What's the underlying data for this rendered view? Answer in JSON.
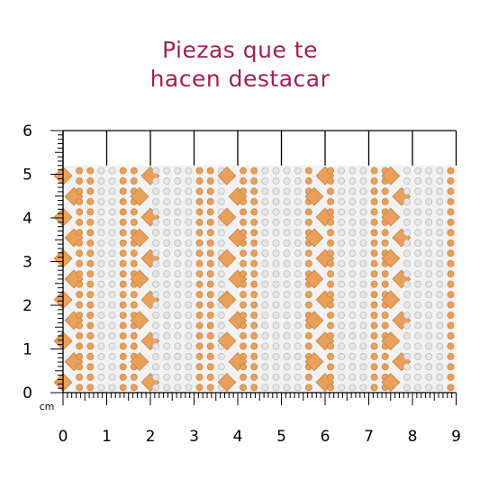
{
  "title": {
    "line1": "Piezas que te",
    "line2": "hacen destacar"
  },
  "ruler": {
    "unit": "cm",
    "x_labels": [
      "0",
      "1",
      "2",
      "3",
      "4",
      "5",
      "6",
      "7",
      "8",
      "9"
    ],
    "y_labels": [
      "0",
      "1",
      "2",
      "3",
      "4",
      "5",
      "6"
    ],
    "x_range_cm": [
      0,
      9
    ],
    "y_range_cm": [
      0,
      6
    ]
  },
  "product": {
    "width_cm": 9,
    "height_cm": 5.2,
    "colors": {
      "gold": "#e8a05a",
      "gold_dark": "#c7833f",
      "silver": "#e6e6e8",
      "silver_dark": "#b8b8bc",
      "background": "#f2f2f3"
    }
  },
  "colors": {
    "title": "#9c2158",
    "ruler": "#000000"
  }
}
